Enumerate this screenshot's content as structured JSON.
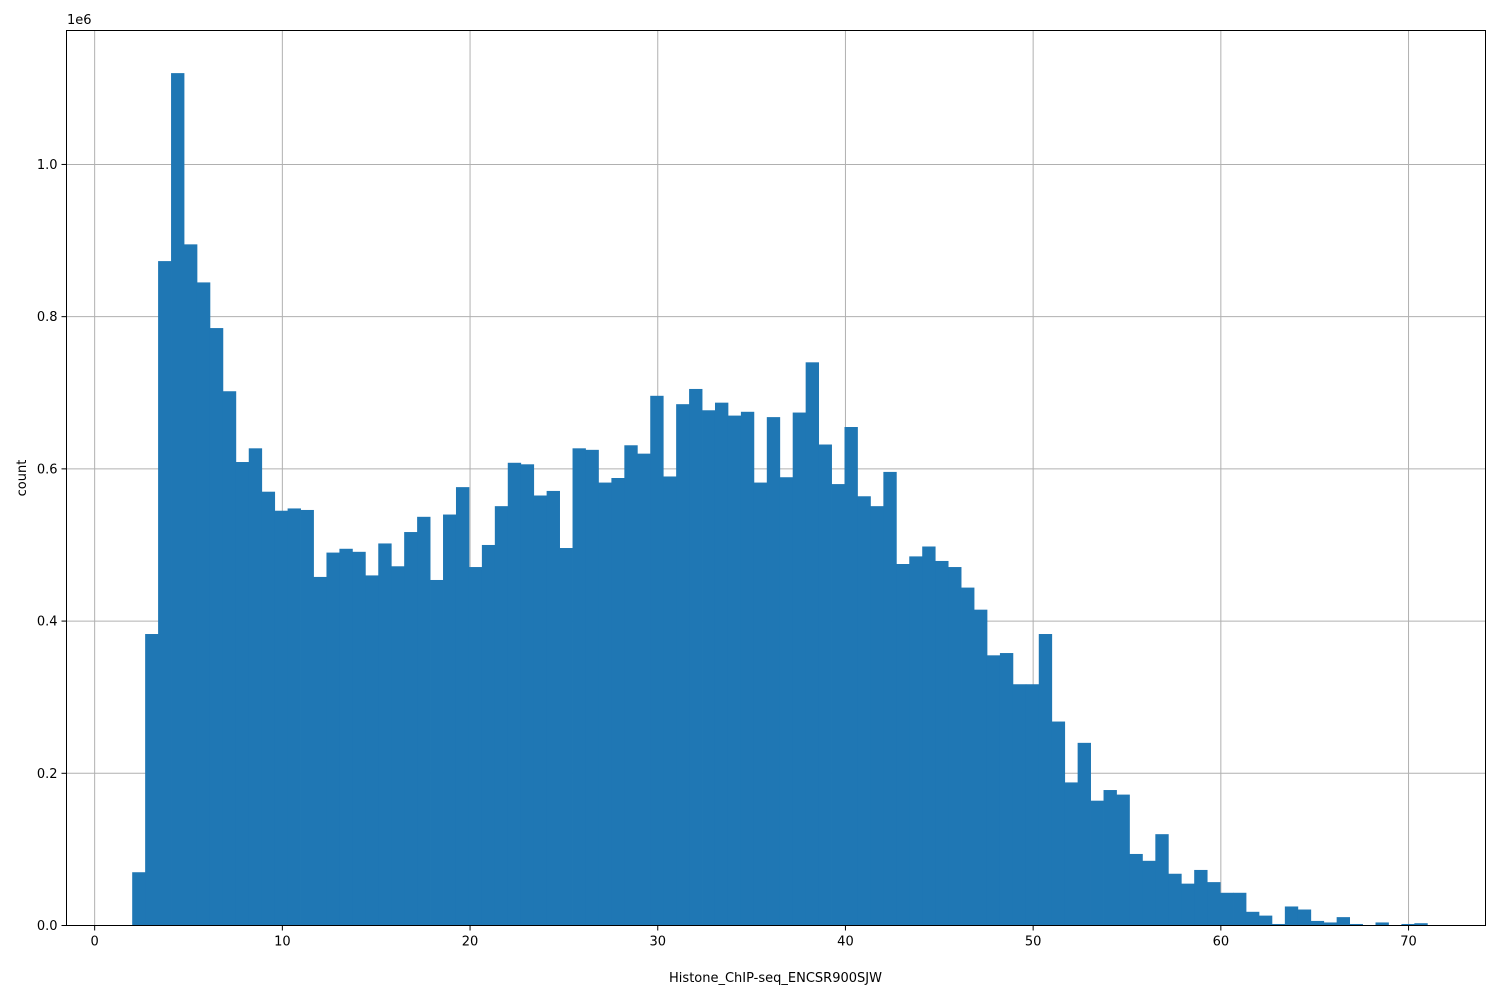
{
  "chart_data": {
    "type": "bar",
    "title": "",
    "xlabel": "Histone_ChIP-seq_ENCSR900SJW",
    "ylabel": "count",
    "y_multiplier_label": "1e6",
    "xlim": [
      -1.5,
      74.1
    ],
    "ylim": [
      0,
      1.176
    ],
    "xticks": [
      0,
      10,
      20,
      30,
      40,
      50,
      60,
      70
    ],
    "xtick_labels": [
      "0",
      "10",
      "20",
      "30",
      "40",
      "50",
      "60",
      "70"
    ],
    "yticks": [
      0,
      0.2,
      0.4,
      0.6,
      0.8,
      1.0
    ],
    "ytick_labels": [
      "0.0",
      "0.2",
      "0.4",
      "0.6",
      "0.8",
      "1.0"
    ],
    "grid": true,
    "bar_color": "#1f77b4",
    "bin_start": 2.0,
    "bin_width": 0.69,
    "values": [
      0.07,
      0.383,
      0.873,
      1.12,
      0.895,
      0.845,
      0.785,
      0.702,
      0.609,
      0.627,
      0.57,
      0.545,
      0.548,
      0.546,
      0.458,
      0.49,
      0.495,
      0.491,
      0.46,
      0.502,
      0.472,
      0.517,
      0.537,
      0.454,
      0.54,
      0.576,
      0.471,
      0.5,
      0.551,
      0.608,
      0.606,
      0.565,
      0.571,
      0.496,
      0.627,
      0.625,
      0.582,
      0.588,
      0.631,
      0.62,
      0.696,
      0.59,
      0.685,
      0.705,
      0.677,
      0.687,
      0.67,
      0.675,
      0.582,
      0.668,
      0.589,
      0.674,
      0.74,
      0.632,
      0.58,
      0.655,
      0.564,
      0.551,
      0.596,
      0.475,
      0.485,
      0.498,
      0.479,
      0.471,
      0.444,
      0.415,
      0.355,
      0.358,
      0.317,
      0.317,
      0.383,
      0.268,
      0.188,
      0.24,
      0.164,
      0.178,
      0.172,
      0.094,
      0.085,
      0.12,
      0.068,
      0.055,
      0.073,
      0.057,
      0.043,
      0.043,
      0.018,
      0.013,
      0.002,
      0.025,
      0.021,
      0.006,
      0.004,
      0.011,
      0.002,
      0.0,
      0.004,
      0.0,
      0.002,
      0.003
    ]
  }
}
